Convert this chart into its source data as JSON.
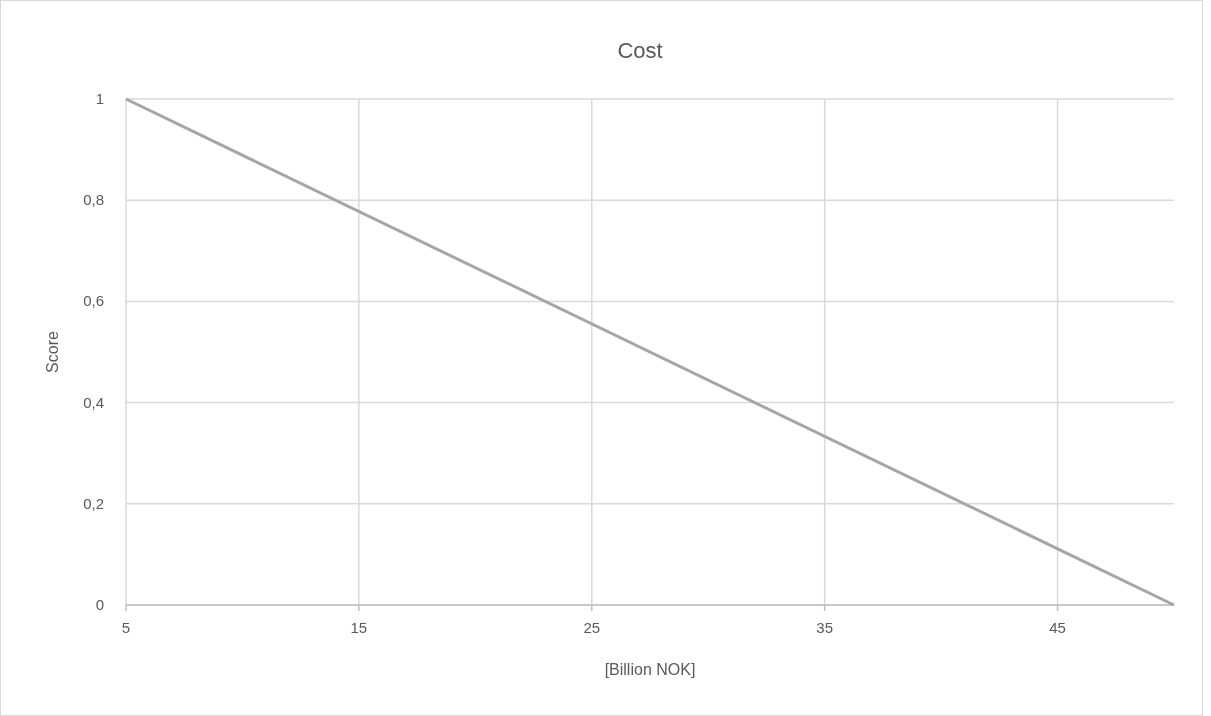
{
  "chart_data": {
    "type": "line",
    "title": "Cost",
    "xlabel": "[Billion NOK]",
    "ylabel": "Score",
    "x": [
      5,
      50
    ],
    "series": [
      {
        "color": "#a5a5a5",
        "values": [
          1,
          0
        ]
      }
    ],
    "xlim": [
      5,
      50
    ],
    "xticks": [
      5,
      15,
      25,
      35,
      45
    ],
    "ylim": [
      0,
      1
    ],
    "yticks": [
      0,
      {
        "value": 0.2,
        "label": "0,2"
      },
      {
        "value": 0.4,
        "label": "0,4"
      },
      {
        "value": 0.6,
        "label": "0,6"
      },
      {
        "value": 0.8,
        "label": "0,8"
      },
      1
    ],
    "grid": true,
    "marker": "none",
    "line_style": "solid"
  }
}
